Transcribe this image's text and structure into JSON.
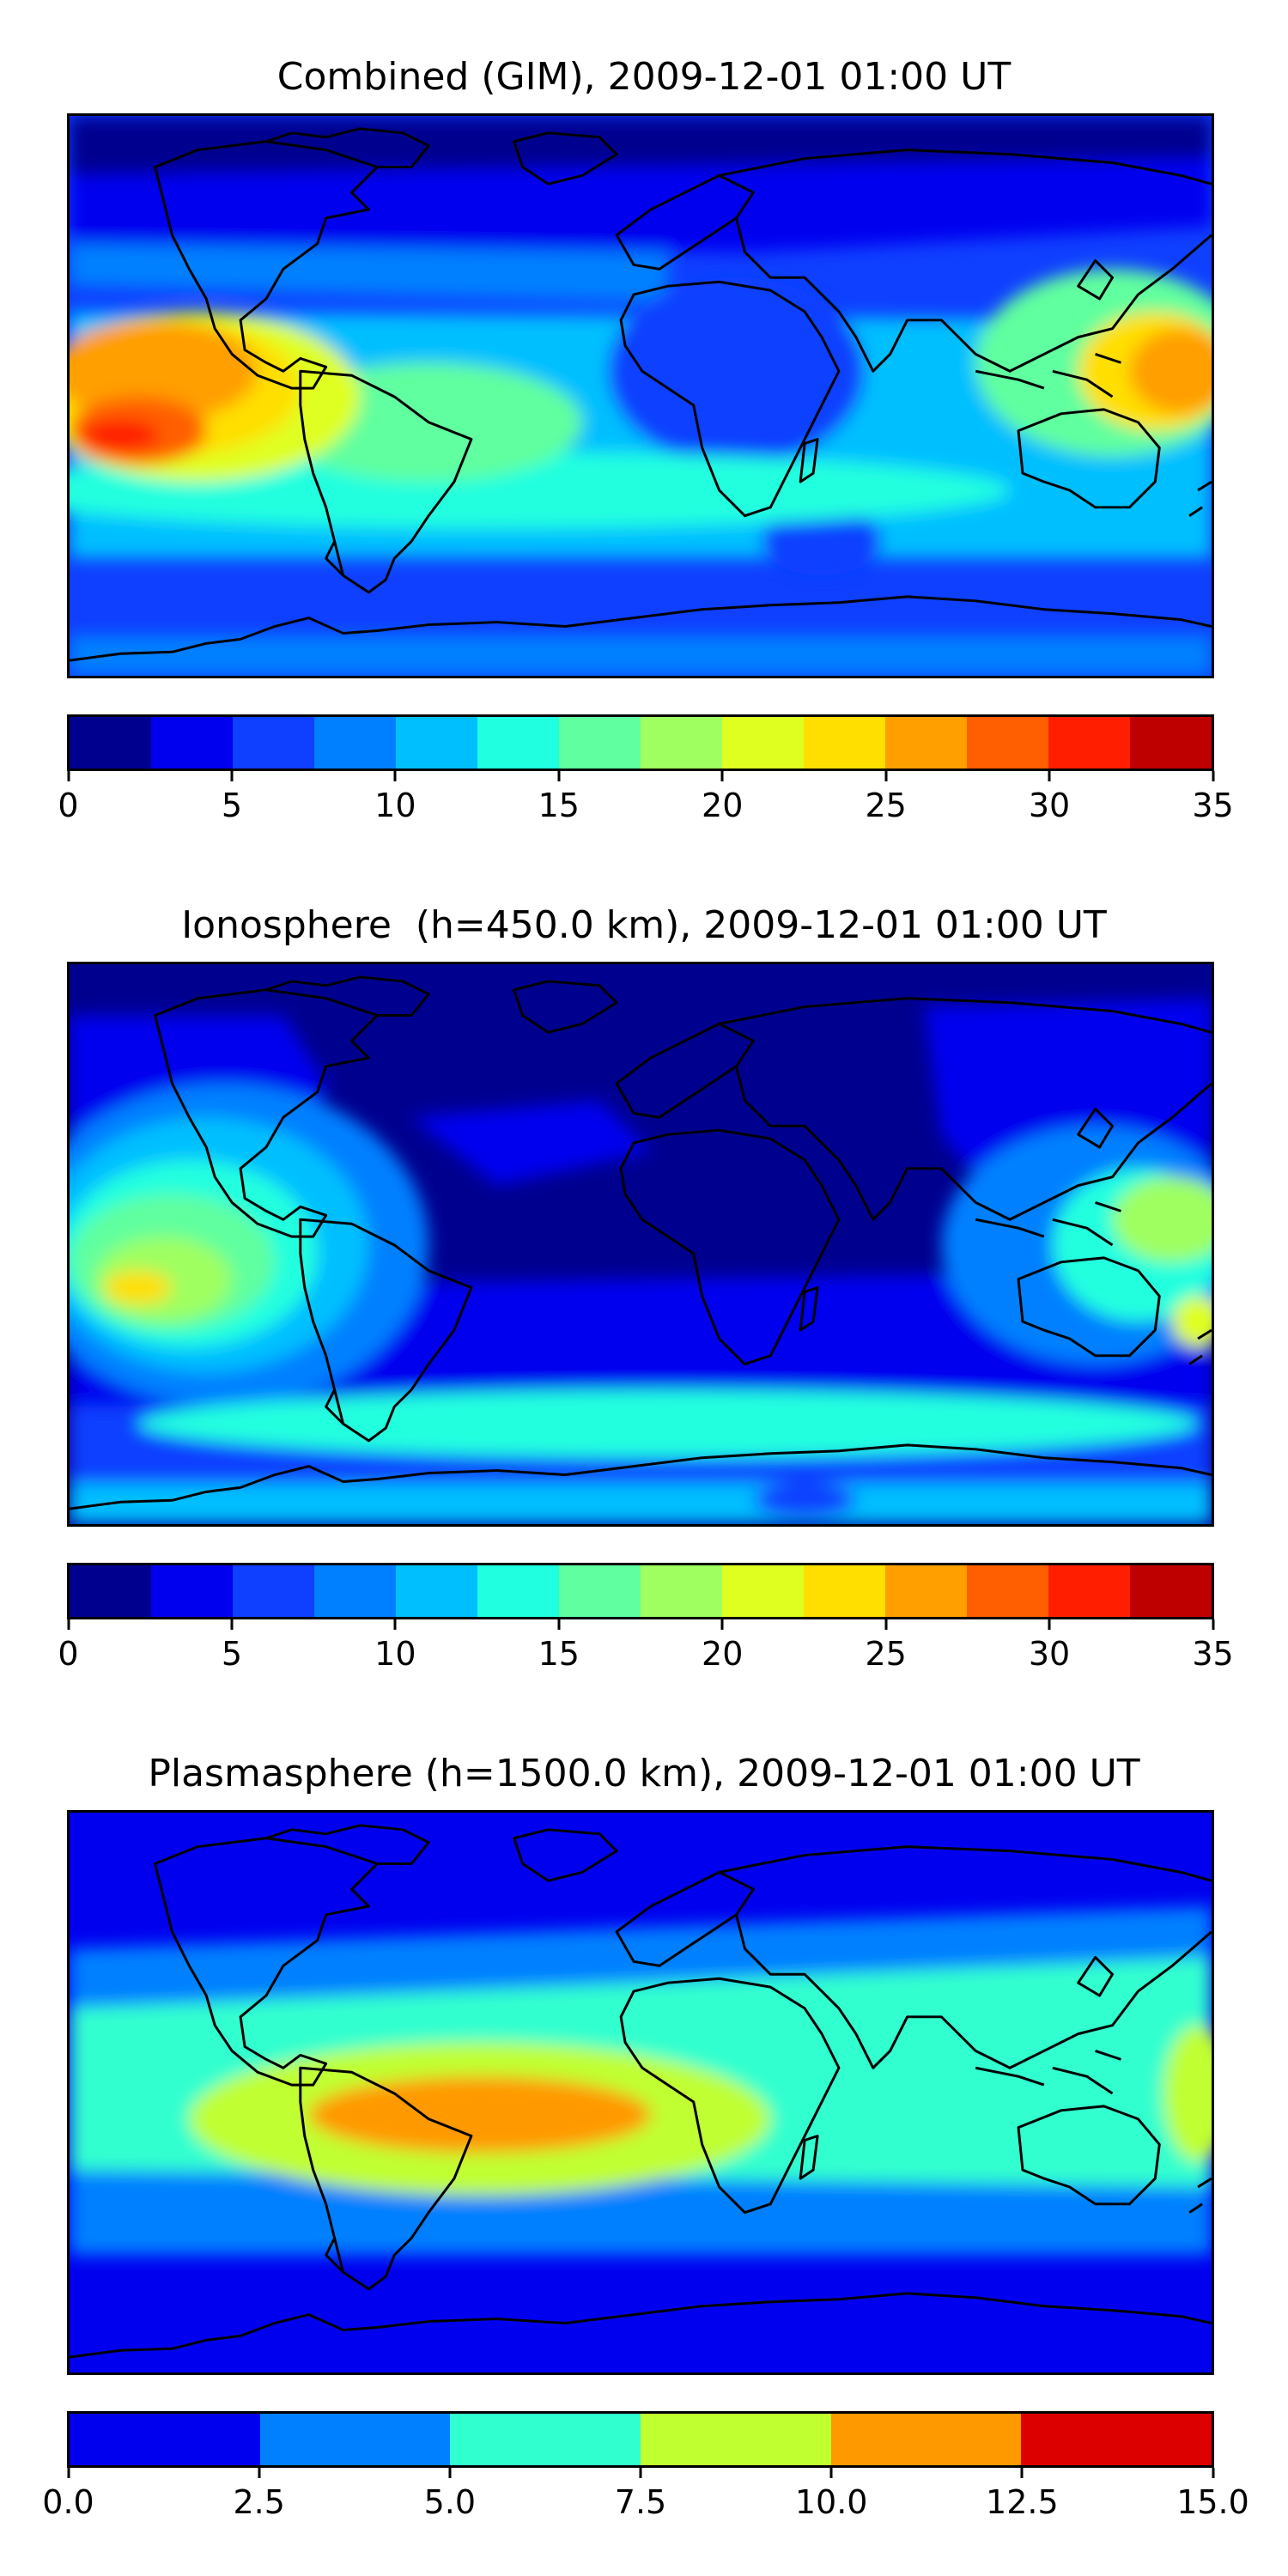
{
  "panels": [
    {
      "title": "Combined (GIM), 2009-12-01 01:00 UT",
      "colorbar": {
        "colors": [
          "#00008f",
          "#0000ef",
          "#0f3fff",
          "#0080ff",
          "#00bfff",
          "#20ffdf",
          "#60ff9f",
          "#9fff60",
          "#dfff20",
          "#ffdf00",
          "#ff9f00",
          "#ff5f00",
          "#ff1f00",
          "#bf0000"
        ],
        "ticks": [
          "0",
          "5",
          "10",
          "15",
          "20",
          "25",
          "30",
          "35"
        ],
        "tick_values": [
          0,
          5,
          10,
          15,
          20,
          25,
          30,
          35
        ],
        "range": [
          0,
          35
        ]
      }
    },
    {
      "title": "Ionosphere  (h=450.0 km), 2009-12-01 01:00 UT",
      "colorbar": {
        "colors": [
          "#00008f",
          "#0000ef",
          "#0f3fff",
          "#0080ff",
          "#00bfff",
          "#20ffdf",
          "#60ff9f",
          "#9fff60",
          "#dfff20",
          "#ffdf00",
          "#ff9f00",
          "#ff5f00",
          "#ff1f00",
          "#bf0000"
        ],
        "ticks": [
          "0",
          "5",
          "10",
          "15",
          "20",
          "25",
          "30",
          "35"
        ],
        "tick_values": [
          0,
          5,
          10,
          15,
          20,
          25,
          30,
          35
        ],
        "range": [
          0,
          35
        ]
      }
    },
    {
      "title": "Plasmasphere (h=1500.0 km), 2009-12-01 01:00 UT",
      "colorbar": {
        "colors": [
          "#0000ef",
          "#0080ff",
          "#30ffcf",
          "#c0ff30",
          "#ff9900",
          "#dd0000"
        ],
        "ticks": [
          "0.0",
          "2.5",
          "5.0",
          "7.5",
          "10.0",
          "12.5",
          "15.0"
        ],
        "tick_values": [
          0,
          2.5,
          5,
          7.5,
          10,
          12.5,
          15
        ],
        "range": [
          0,
          15
        ]
      }
    }
  ]
}
